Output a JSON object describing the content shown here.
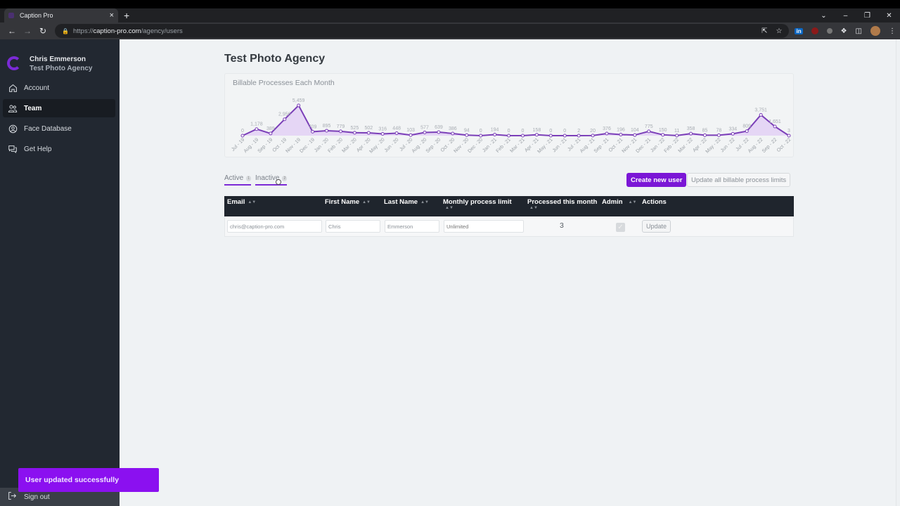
{
  "browser": {
    "tab_title": "Caption Pro",
    "tab_close": "×",
    "new_tab": "+",
    "url_scheme": "https://",
    "url_host": "caption-pro.com",
    "url_path": "/agency/users",
    "window_controls": [
      "⌄",
      "–",
      "❐",
      "✕"
    ]
  },
  "sidebar": {
    "user_name": "Chris Emmerson",
    "org_name": "Test Photo Agency",
    "items": [
      {
        "label": "Account",
        "icon": "home-icon",
        "active": false
      },
      {
        "label": "Team",
        "icon": "users-icon",
        "active": true
      },
      {
        "label": "Face Database",
        "icon": "face-icon",
        "active": false
      },
      {
        "label": "Get Help",
        "icon": "chat-icon",
        "active": false
      }
    ],
    "sign_out": "Sign out"
  },
  "main": {
    "page_title": "Test Photo Agency",
    "tabs": [
      {
        "label": "Active",
        "count": "1"
      },
      {
        "label": "Inactive",
        "count": "2"
      }
    ],
    "create_button": "Create new user",
    "update_all_button": "Update all billable process limits",
    "table": {
      "headers": [
        "Email",
        "First Name",
        "Last Name",
        "Monthly process limit",
        "Processed this month",
        "Admin",
        "Actions"
      ],
      "rows": [
        {
          "email": "chris@caption-pro.com",
          "first_name": "Chris",
          "last_name": "Emmerson",
          "limit_placeholder": "Unlimited",
          "processed": "3",
          "admin": true,
          "action": "Update"
        }
      ]
    }
  },
  "toast": {
    "message": "User updated successfully"
  },
  "colors": {
    "accent": "#7b16d6",
    "sidebar_bg": "#222831",
    "table_header_bg": "#1f252d",
    "toast_bg": "#8b10f0",
    "chart_line": "#7b3fb8",
    "chart_fill": "#e3d0f5"
  },
  "chart_data": {
    "type": "area",
    "title": "Billable Processes Each Month",
    "xlabel": "",
    "ylabel": "",
    "grid": false,
    "legend": "none",
    "categories": [
      "Jul - 19",
      "Aug - 19",
      "Sep - 19",
      "Oct - 19",
      "Nov - 19",
      "Dec - 19",
      "Jan - 20",
      "Feb - 20",
      "Mar - 20",
      "Apr - 20",
      "May - 20",
      "Jun - 20",
      "Jul - 20",
      "Aug - 20",
      "Sep - 20",
      "Oct - 20",
      "Nov - 20",
      "Dec - 20",
      "Jan - 21",
      "Feb - 21",
      "Mar - 21",
      "Apr - 21",
      "May - 21",
      "Jun - 21",
      "Jul - 21",
      "Aug - 21",
      "Sep - 21",
      "Oct - 21",
      "Nov - 21",
      "Dec - 21",
      "Jan - 22",
      "Feb - 22",
      "Mar - 22",
      "Apr - 22",
      "May - 22",
      "Jun - 22",
      "Jul - 22",
      "Aug - 22",
      "Sep - 22",
      "Oct - 22"
    ],
    "values": [
      0,
      1178,
      389,
      2956,
      5459,
      709,
      895,
      779,
      525,
      502,
      316,
      448,
      103,
      577,
      639,
      386,
      94,
      0,
      194,
      0,
      0,
      158,
      0,
      0,
      2,
      20,
      376,
      196,
      104,
      775,
      150,
      11,
      358,
      85,
      78,
      334,
      809,
      3751,
      1651,
      3
    ],
    "labels": [
      "0",
      "1,178",
      "389",
      "2,956",
      "5,459",
      "709",
      "895",
      "779",
      "525",
      "502",
      "316",
      "448",
      "103",
      "577",
      "639",
      "386",
      "94",
      "0",
      "194",
      "0",
      "0",
      "158",
      "0",
      "0",
      "2",
      "20",
      "376",
      "196",
      "104",
      "775",
      "150",
      "11",
      "358",
      "85",
      "78",
      "334",
      "809",
      "3,751",
      "1,651",
      "3"
    ],
    "ylim": [
      0,
      5459
    ]
  }
}
